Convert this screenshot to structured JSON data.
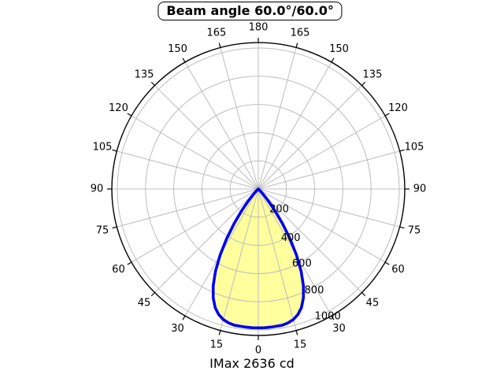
{
  "title": "Beam angle 60.0°/60.0°",
  "footer": "IMax 2636 cd",
  "colors": {
    "background": "#ffffff",
    "beam_fill": "#ffff9e",
    "beam_stroke": "#0000ee",
    "grid": "#bdbdbd",
    "axis": "#000000",
    "text": "#000000"
  },
  "chart_data": {
    "type": "polar-intensity",
    "title": "Beam angle 60.0°/60.0°",
    "annotation": "IMax 2636 cd",
    "imax_cd": 2636,
    "beam_angle_deg": {
      "c0": 60.0,
      "c90": 60.0
    },
    "angle_tick_step_deg": 15,
    "angle_labels_deg": [
      0,
      15,
      30,
      45,
      60,
      75,
      90,
      105,
      120,
      135,
      150,
      165,
      180
    ],
    "radial_ticks": [
      200,
      400,
      600,
      800,
      1000
    ],
    "radial_axis_max": 1039,
    "radial_label_angle_deg": 28.6,
    "grid_on": true,
    "curve": {
      "mirror_symmetric": true,
      "angles_deg": [
        0,
        2.5,
        5,
        7.5,
        10,
        12.5,
        15,
        17.5,
        20,
        22.5,
        25,
        27.5,
        30,
        32.5,
        35,
        37.5,
        40,
        42.5,
        45,
        47.5,
        50,
        52.5,
        55,
        57.5,
        60
      ],
      "intensity": [
        985,
        985,
        984,
        982,
        981,
        973,
        959,
        934,
        895,
        836,
        757,
        658,
        542,
        418,
        298,
        193,
        111,
        56,
        24,
        9,
        3,
        1,
        0,
        0,
        0
      ]
    }
  }
}
